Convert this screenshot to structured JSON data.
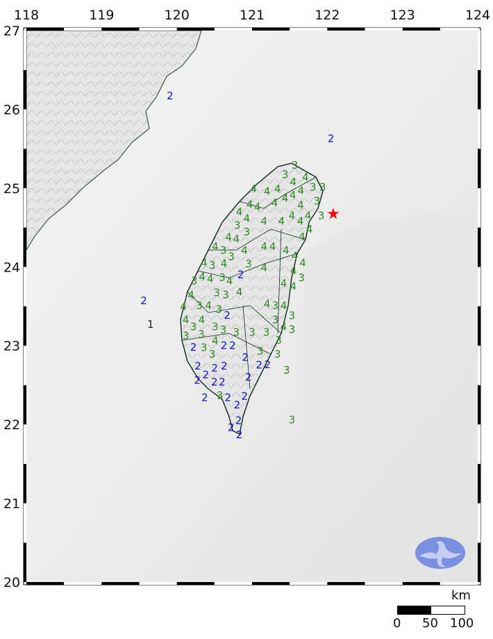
{
  "map": {
    "lon_range": [
      118,
      124
    ],
    "lat_range": [
      20,
      27
    ],
    "lon_ticks": [
      "118",
      "119",
      "120",
      "121",
      "122",
      "123",
      "124"
    ],
    "lat_ticks": [
      "20",
      "21",
      "22",
      "23",
      "24",
      "25",
      "26",
      "27"
    ],
    "epicenter": {
      "lon": 122.08,
      "lat": 24.67,
      "icon": "star-icon",
      "color": "#ff0000"
    },
    "intensity_colors": {
      "1": "#222222",
      "2": "#1010c8",
      "3": "#2a8a1e",
      "4": "#2a8a1e"
    },
    "stations": [
      [
        119.91,
        26.17,
        "2"
      ],
      [
        122.05,
        25.63,
        "2"
      ],
      [
        121.57,
        25.29,
        "3"
      ],
      [
        121.44,
        25.17,
        "3"
      ],
      [
        121.71,
        25.14,
        "4"
      ],
      [
        121.51,
        25.08,
        "4"
      ],
      [
        121.57,
        25.01,
        "4"
      ],
      [
        121.62,
        25.01,
        "4"
      ],
      [
        121.79,
        25.01,
        "3"
      ],
      [
        121.94,
        25.01,
        "3"
      ],
      [
        121.02,
        24.99,
        "4"
      ],
      [
        121.2,
        24.96,
        "4"
      ],
      [
        121.34,
        24.99,
        "4"
      ],
      [
        121.44,
        24.87,
        "4"
      ],
      [
        121.53,
        24.87,
        "4"
      ],
      [
        121.85,
        24.85,
        "3"
      ],
      [
        121.3,
        24.85,
        "4"
      ],
      [
        121.92,
        24.74,
        "3"
      ],
      [
        120.97,
        24.79,
        "4"
      ],
      [
        120.83,
        24.7,
        "4"
      ],
      [
        120.93,
        24.65,
        "4"
      ],
      [
        121.07,
        24.76,
        "4"
      ],
      [
        121.16,
        24.58,
        "4"
      ],
      [
        121.39,
        24.58,
        "4"
      ],
      [
        121.53,
        24.65,
        "4"
      ],
      [
        121.57,
        24.58,
        "4"
      ],
      [
        121.69,
        24.65,
        "4"
      ],
      [
        121.74,
        24.58,
        "4"
      ],
      [
        121.71,
        24.46,
        "4"
      ],
      [
        120.79,
        24.54,
        "3"
      ],
      [
        120.79,
        24.39,
        "4"
      ],
      [
        120.93,
        24.48,
        "3"
      ],
      [
        120.7,
        24.39,
        "4"
      ],
      [
        120.51,
        24.26,
        "4"
      ],
      [
        120.6,
        24.21,
        "3"
      ],
      [
        120.88,
        24.21,
        "4"
      ],
      [
        121.16,
        24.26,
        "4"
      ],
      [
        121.2,
        24.26,
        "4"
      ],
      [
        121.45,
        24.21,
        "4"
      ],
      [
        120.47,
        24.02,
        "3"
      ],
      [
        120.4,
        24.05,
        "4"
      ],
      [
        120.65,
        24.13,
        "3"
      ],
      [
        120.7,
        24.04,
        "4"
      ],
      [
        120.94,
        24.05,
        "3"
      ],
      [
        121.16,
        23.99,
        "4"
      ],
      [
        121.57,
        24.14,
        "4"
      ],
      [
        121.6,
        24.05,
        "4"
      ],
      [
        121.55,
        23.95,
        "4"
      ],
      [
        121.62,
        23.86,
        "3"
      ],
      [
        121.57,
        23.82,
        "4"
      ],
      [
        121.42,
        23.79,
        "4"
      ],
      [
        120.23,
        23.82,
        "3"
      ],
      [
        120.31,
        23.9,
        "4"
      ],
      [
        120.42,
        23.95,
        "4"
      ],
      [
        120.59,
        23.88,
        "3"
      ],
      [
        120.59,
        23.82,
        "4"
      ],
      [
        120.65,
        23.7,
        "3"
      ],
      [
        120.19,
        23.64,
        "4"
      ],
      [
        120.56,
        23.46,
        "3"
      ],
      [
        120.42,
        23.51,
        "4"
      ],
      [
        120.83,
        23.68,
        "4"
      ],
      [
        120.85,
        23.9,
        "2"
      ],
      [
        121.2,
        23.53,
        "4"
      ],
      [
        121.31,
        23.51,
        "3"
      ],
      [
        121.42,
        23.51,
        "4"
      ],
      [
        121.53,
        23.38,
        "3"
      ],
      [
        121.31,
        23.33,
        "3"
      ],
      [
        121.42,
        23.24,
        "4"
      ],
      [
        120.42,
        23.67,
        "3"
      ],
      [
        120.28,
        23.51,
        "3"
      ],
      [
        120.33,
        23.38,
        "4"
      ],
      [
        120.22,
        23.24,
        "3"
      ],
      [
        120.1,
        23.51,
        "4"
      ],
      [
        120.23,
        23.33,
        "4"
      ],
      [
        120.51,
        23.24,
        "3"
      ],
      [
        120.6,
        23.2,
        "3"
      ],
      [
        120.51,
        23.08,
        "4"
      ],
      [
        120.79,
        23.17,
        "3"
      ],
      [
        121.0,
        23.17,
        "3"
      ],
      [
        121.19,
        23.17,
        "3"
      ],
      [
        121.34,
        23.08,
        "3"
      ],
      [
        121.53,
        23.24,
        "3"
      ],
      [
        120.3,
        23.17,
        "3"
      ],
      [
        120.2,
        23.17,
        "3"
      ],
      [
        120.6,
        23.24,
        "2"
      ],
      [
        120.58,
        23.08,
        "2"
      ],
      [
        120.63,
        23.0,
        "2"
      ],
      [
        120.47,
        22.89,
        "3"
      ],
      [
        120.22,
        22.98,
        "2"
      ],
      [
        120.28,
        23.02,
        "3"
      ],
      [
        120.28,
        22.74,
        "2"
      ],
      [
        120.25,
        22.63,
        "2"
      ],
      [
        120.33,
        22.63,
        "2"
      ],
      [
        120.49,
        22.73,
        "2"
      ],
      [
        120.63,
        22.74,
        "2"
      ],
      [
        120.91,
        22.85,
        "2"
      ],
      [
        121.11,
        22.93,
        "3"
      ],
      [
        121.07,
        22.82,
        "2"
      ],
      [
        121.15,
        22.76,
        "2"
      ],
      [
        121.3,
        22.93,
        "3"
      ],
      [
        120.95,
        22.6,
        "2"
      ],
      [
        120.44,
        22.58,
        "2"
      ],
      [
        120.51,
        22.54,
        "2"
      ],
      [
        120.56,
        22.49,
        "3"
      ],
      [
        121.46,
        22.69,
        "3"
      ],
      [
        120.37,
        22.34,
        "2"
      ],
      [
        120.62,
        22.38,
        "2"
      ],
      [
        120.9,
        22.36,
        "2"
      ],
      [
        120.82,
        22.25,
        "2"
      ],
      [
        120.82,
        22.05,
        "2"
      ],
      [
        120.74,
        21.96,
        "2"
      ],
      [
        120.83,
        21.92,
        "2"
      ],
      [
        121.53,
        22.06,
        "3"
      ],
      [
        119.65,
        23.27,
        "1"
      ],
      [
        119.56,
        23.57,
        "2"
      ]
    ]
  },
  "scale_bar": {
    "unit": "km",
    "labels": [
      "0",
      "50",
      "100"
    ]
  },
  "logo": {
    "name": "cwa-logo",
    "color": "#7b8fe0"
  }
}
